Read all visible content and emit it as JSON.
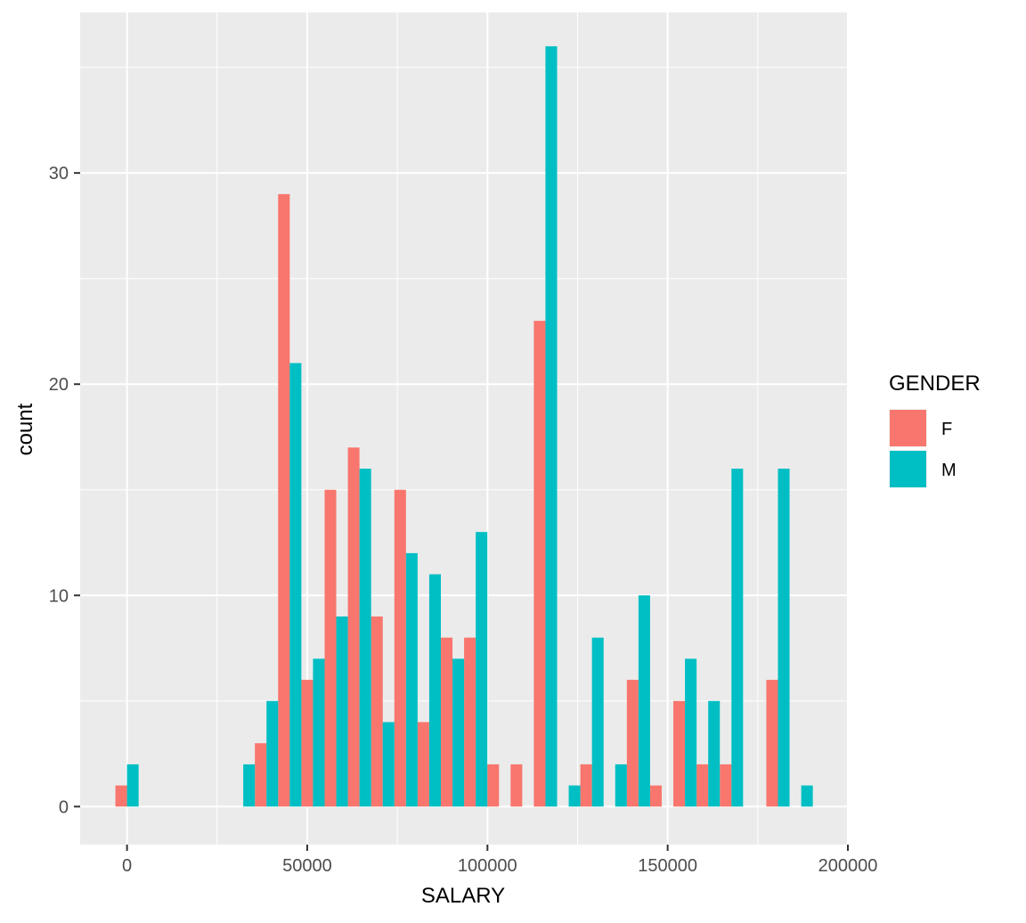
{
  "chart_data": {
    "type": "bar",
    "subtype": "histogram-dodged",
    "xlabel": "SALARY",
    "ylabel": "count",
    "xlim": [
      -13000,
      200000
    ],
    "ylim": [
      -1.8,
      37.6
    ],
    "x_ticks": [
      0,
      50000,
      100000,
      150000,
      200000
    ],
    "x_tick_labels": [
      "0",
      "50000",
      "100000",
      "150000",
      "200000"
    ],
    "y_ticks": [
      0,
      10,
      20,
      30
    ],
    "y_tick_labels": [
      "0",
      "10",
      "20",
      "30"
    ],
    "bin_centers": [
      0,
      6450,
      12900,
      19350,
      25800,
      32250,
      38700,
      45150,
      51600,
      58050,
      64500,
      70950,
      77400,
      83850,
      90300,
      96750,
      103200,
      109650,
      116100,
      122550,
      129000,
      135450,
      141900,
      148350,
      154800,
      161250,
      167700,
      174150,
      180600,
      187050
    ],
    "legend": {
      "title": "GENDER",
      "position": "right"
    },
    "series": [
      {
        "name": "F",
        "color": "#F8766D",
        "values": [
          1,
          0,
          0,
          0,
          0,
          0,
          3,
          29,
          6,
          15,
          17,
          9,
          15,
          4,
          8,
          8,
          2,
          2,
          23,
          0,
          2,
          0,
          6,
          1,
          5,
          2,
          2,
          0,
          6,
          0
        ]
      },
      {
        "name": "M",
        "color": "#00BFC4",
        "values": [
          2,
          0,
          0,
          0,
          0,
          2,
          5,
          21,
          7,
          9,
          16,
          4,
          12,
          11,
          7,
          13,
          0,
          0,
          36,
          1,
          8,
          2,
          10,
          0,
          7,
          5,
          16,
          0,
          16,
          1
        ]
      }
    ],
    "grid": true,
    "panel_background": "#EBEBEB",
    "grid_color": "#FFFFFF"
  }
}
